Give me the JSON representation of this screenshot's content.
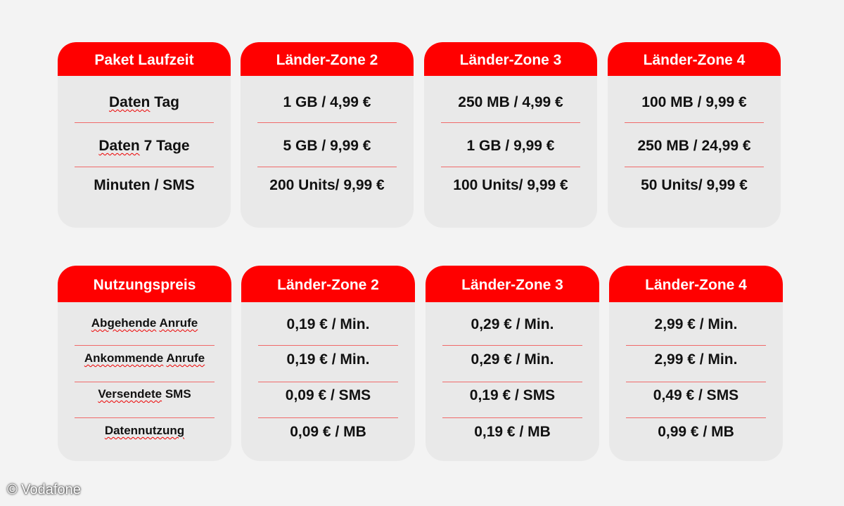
{
  "top": {
    "cards": [
      {
        "header": "Paket Laufzeit",
        "rows": [
          "Daten Tag",
          "Daten 7 Tage",
          "Minuten / SMS"
        ]
      },
      {
        "header": "Länder-Zone 2",
        "rows": [
          "1 GB / 4,99 €",
          "5 GB / 9,99 €",
          "200 Units/ 9,99 €"
        ]
      },
      {
        "header": "Länder-Zone 3",
        "rows": [
          "250 MB / 4,99 €",
          "1 GB / 9,99 €",
          "100 Units/ 9,99 €"
        ]
      },
      {
        "header": "Länder-Zone 4",
        "rows": [
          "100 MB / 9,99 €",
          "250 MB / 24,99 €",
          "50 Units/ 9,99 €"
        ]
      }
    ]
  },
  "bottom": {
    "cards": [
      {
        "header": "Nutzungspreis",
        "rows": [
          "Abgehende Anrufe",
          "Ankommende Anrufe",
          "Versendete SMS",
          "Datennutzung"
        ]
      },
      {
        "header": "Länder-Zone 2",
        "rows": [
          "0,19 € / Min.",
          "0,19 € / Min.",
          "0,09 € / SMS",
          "0,09 € / MB"
        ]
      },
      {
        "header": "Länder-Zone 3",
        "rows": [
          "0,29 € / Min.",
          "0,29 € / Min.",
          "0,19 € / SMS",
          "0,19 € / MB"
        ]
      },
      {
        "header": "Länder-Zone 4",
        "rows": [
          "2,99 € / Min.",
          "2,99 € / Min.",
          "0,49 € / SMS",
          "0,99 € / MB"
        ]
      }
    ]
  },
  "credit": "© Vodafone",
  "colors": {
    "accent": "#ff0000",
    "card": "#e9e9e9",
    "background": "#f3f3f3"
  }
}
